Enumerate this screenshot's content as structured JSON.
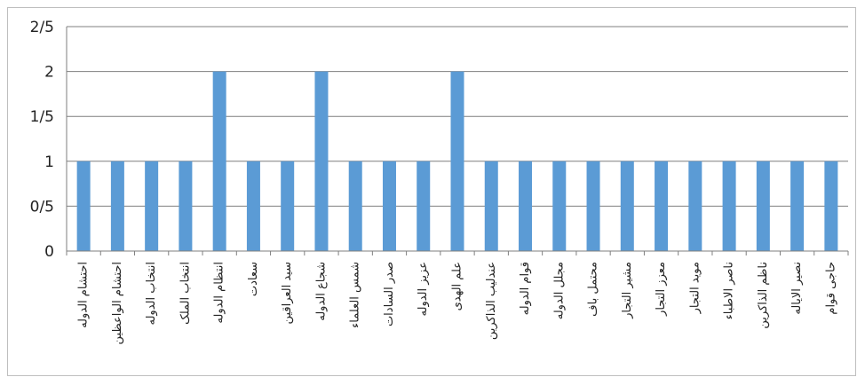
{
  "chart_data": {
    "type": "bar",
    "categories": [
      "احتشام الدوله",
      "احتشام الواعظین",
      "انتخاب الدوله",
      "انتخاب الملک",
      "انتظام الدوله",
      "سعادت",
      "سید العراقین",
      "شجاع الدوله",
      "شمس العلماء",
      "صدر السادات",
      "عزیز الدوله",
      "علم الهدی",
      "عندلیب الذاکرین",
      "قوام الدوله",
      "مجلل الدوله",
      "محتمل باف",
      "مشیر التجار",
      "معزز التجار",
      "موید التجار",
      "ناصر الاطباء",
      "ناظم الذاکرین",
      "نصیر الایاله",
      "حاجی قوام"
    ],
    "values": [
      1,
      1,
      1,
      1,
      2,
      1,
      1,
      2,
      1,
      1,
      1,
      2,
      1,
      1,
      1,
      1,
      1,
      1,
      1,
      1,
      1,
      1,
      1
    ],
    "y_ticks": [
      "0",
      "0/5",
      "1",
      "1/5",
      "2",
      "2/5"
    ],
    "ylim": [
      0,
      2.5
    ],
    "grid": true,
    "bar_color": "#5b9bd5",
    "title": "",
    "xlabel": "",
    "ylabel": ""
  }
}
